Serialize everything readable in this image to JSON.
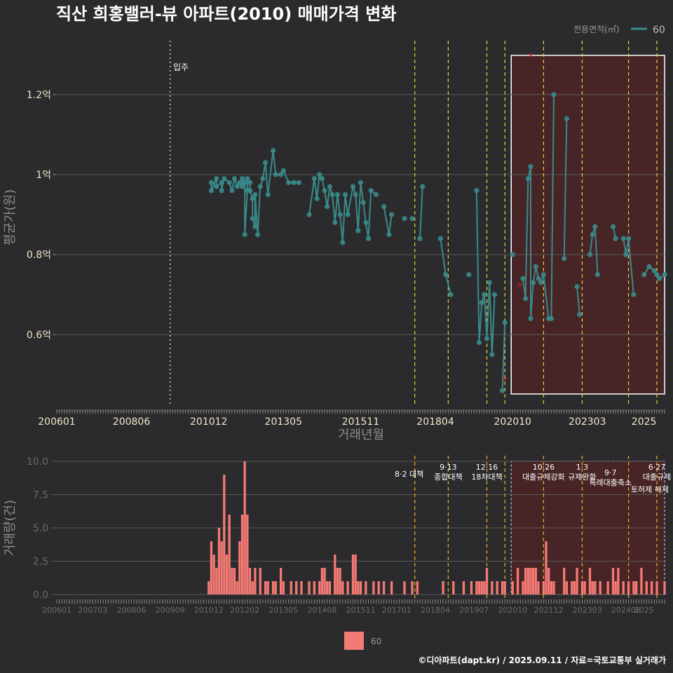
{
  "title": "직산 희홍밸러-뷰 아파트(2010) 매매가격 변화",
  "caption": "©디아파트(dapt.kr) / 2025.09.11 / 자료=국토교통부 실거래가",
  "colors": {
    "background": "#2b2b2d",
    "series": "#3a8a8a",
    "bar": "#f47a74",
    "policy_line": "#e8d33c",
    "highlight_fill": "#4a2326",
    "highlight_border": "#ffffff",
    "marker": "#e0202a"
  },
  "chart_data": [
    {
      "type": "line",
      "title": "직산 희홍밸러-뷰 아파트(2010) 매매가격 변화",
      "xlabel": "거래년월",
      "ylabel": "평균가(원)",
      "x_tick_labels": [
        "200601",
        "200806",
        "201012",
        "201305",
        "201511",
        "201804",
        "202010",
        "202303",
        "2025"
      ],
      "y_ticks": [
        0.6,
        0.8,
        1.0,
        1.2
      ],
      "y_tick_labels": [
        "0.6억",
        "0.8억",
        "1억",
        "1.2억"
      ],
      "ylim": [
        0.42,
        1.34
      ],
      "xlim": [
        "2006-01",
        "2025-09"
      ],
      "legend": {
        "title": "전용면적(㎡)",
        "entries": [
          "60"
        ],
        "position": "top-right"
      },
      "annotation_move_in": {
        "label": "입주",
        "date": "2009-09"
      },
      "highlight_range": [
        "2020-10",
        "2025-09"
      ],
      "policy_dates": [
        "2017-08",
        "2018-09",
        "2019-12",
        "2020-07",
        "2021-10",
        "2023-01",
        "2024-07",
        "2025-06"
      ],
      "outlier_markers": [
        {
          "date": "2020-07",
          "value": 0.49
        },
        {
          "date": "2021-01",
          "value": 0.725
        },
        {
          "date": "2021-05",
          "value": 1.3
        }
      ],
      "series": [
        {
          "name": "60",
          "points": [
            [
              "2011-01",
              0.98
            ],
            [
              "2011-01",
              0.96
            ],
            [
              "2011-03",
              0.99
            ],
            [
              "2011-03",
              0.97
            ],
            [
              "2011-05",
              0.98
            ],
            [
              "2011-05",
              0.96
            ],
            [
              "2011-06",
              0.99
            ],
            [
              "2011-08",
              0.98
            ],
            [
              "2011-09",
              0.96
            ],
            [
              "2011-10",
              0.99
            ],
            [
              "2011-11",
              0.97
            ],
            [
              "2011-12",
              0.98
            ],
            [
              "2012-01",
              0.97
            ],
            [
              "2012-01",
              0.99
            ],
            [
              "2012-02",
              0.98
            ],
            [
              "2012-02",
              0.85
            ],
            [
              "2012-03",
              0.96
            ],
            [
              "2012-03",
              0.99
            ],
            [
              "2012-04",
              0.98
            ],
            [
              "2012-04",
              0.96
            ],
            [
              "2012-05",
              0.94
            ],
            [
              "2012-05",
              0.89
            ],
            [
              "2012-06",
              0.87
            ],
            [
              "2012-06",
              0.95
            ],
            [
              "2012-07",
              0.85
            ],
            [
              "2012-08",
              0.97
            ],
            [
              "2012-09",
              0.99
            ],
            [
              "2012-10",
              1.03
            ],
            [
              "2012-11",
              0.95
            ],
            [
              "2013-01",
              1.06
            ],
            [
              "2013-02",
              1.0
            ],
            [
              "2013-04",
              1.0
            ],
            [
              "2013-05",
              1.01
            ],
            [
              "2013-07",
              0.98
            ],
            [
              "2013-09",
              0.98
            ],
            [
              "2013-11",
              0.98
            ],
            [
              "2014-03",
              0.9
            ],
            [
              "2014-05",
              0.99
            ],
            [
              "2014-06",
              0.94
            ],
            [
              "2014-07",
              1.0
            ],
            [
              "2014-08",
              0.99
            ],
            [
              "2014-09",
              0.96
            ],
            [
              "2014-10",
              0.92
            ],
            [
              "2014-11",
              0.97
            ],
            [
              "2014-12",
              0.95
            ],
            [
              "2015-01",
              0.88
            ],
            [
              "2015-02",
              0.95
            ],
            [
              "2015-03",
              0.9
            ],
            [
              "2015-04",
              0.83
            ],
            [
              "2015-05",
              0.95
            ],
            [
              "2015-06",
              0.9
            ],
            [
              "2015-08",
              0.97
            ],
            [
              "2015-09",
              0.95
            ],
            [
              "2015-10",
              0.86
            ],
            [
              "2015-11",
              0.98
            ],
            [
              "2015-12",
              0.93
            ],
            [
              "2016-01",
              0.88
            ],
            [
              "2016-02",
              0.84
            ],
            [
              "2016-03",
              0.96
            ],
            [
              "2016-05",
              0.95
            ],
            [
              "2016-08",
              0.92
            ],
            [
              "2016-10",
              0.85
            ],
            [
              "2016-11",
              0.9
            ],
            [
              "2017-04",
              0.89
            ],
            [
              "2017-07",
              0.89
            ],
            [
              "2017-10",
              0.84
            ],
            [
              "2017-11",
              0.97
            ],
            [
              "2018-06",
              0.84
            ],
            [
              "2018-08",
              0.75
            ],
            [
              "2018-10",
              0.7
            ],
            [
              "2019-05",
              0.75
            ],
            [
              "2019-08",
              0.96
            ],
            [
              "2019-09",
              0.58
            ],
            [
              "2019-10",
              0.68
            ],
            [
              "2019-11",
              0.7
            ],
            [
              "2019-12",
              0.59
            ],
            [
              "2020-01",
              0.73
            ],
            [
              "2020-02",
              0.55
            ],
            [
              "2020-03",
              0.7
            ],
            [
              "2020-06",
              0.46
            ],
            [
              "2020-07",
              0.63
            ],
            [
              "2020-10",
              0.8
            ],
            [
              "2021-02",
              0.74
            ],
            [
              "2021-03",
              0.69
            ],
            [
              "2021-04",
              0.99
            ],
            [
              "2021-05",
              1.02
            ],
            [
              "2021-05",
              0.64
            ],
            [
              "2021-06",
              0.73
            ],
            [
              "2021-07",
              0.77
            ],
            [
              "2021-08",
              0.74
            ],
            [
              "2021-09",
              0.73
            ],
            [
              "2021-10",
              0.75
            ],
            [
              "2021-12",
              0.64
            ],
            [
              "2022-01",
              0.64
            ],
            [
              "2022-02",
              1.2
            ],
            [
              "2022-06",
              0.79
            ],
            [
              "2022-07",
              1.14
            ],
            [
              "2022-11",
              0.72
            ],
            [
              "2022-12",
              0.65
            ],
            [
              "2023-04",
              0.8
            ],
            [
              "2023-05",
              0.85
            ],
            [
              "2023-06",
              0.87
            ],
            [
              "2023-07",
              0.75
            ],
            [
              "2024-01",
              0.87
            ],
            [
              "2024-02",
              0.84
            ],
            [
              "2024-05",
              0.84
            ],
            [
              "2024-06",
              0.8
            ],
            [
              "2024-07",
              0.84
            ],
            [
              "2024-09",
              0.7
            ],
            [
              "2025-01",
              0.75
            ],
            [
              "2025-03",
              0.77
            ],
            [
              "2025-05",
              0.76
            ],
            [
              "2025-06",
              0.75
            ],
            [
              "2025-07",
              0.74
            ],
            [
              "2025-09",
              0.75
            ]
          ]
        }
      ]
    },
    {
      "type": "bar",
      "xlabel": "",
      "ylabel": "거래량(건)",
      "ylim": [
        0,
        10
      ],
      "y_ticks": [
        0,
        2.5,
        5,
        7.5,
        10
      ],
      "y_tick_labels": [
        "0.0",
        "2.5",
        "5.0",
        "7.5",
        "10.0"
      ],
      "x_tick_labels": [
        "200601",
        "200703",
        "200806",
        "200909",
        "201012",
        "201202",
        "201305",
        "201408",
        "201511",
        "201701",
        "201804",
        "201907",
        "202010",
        "202112",
        "202303",
        "202406",
        "2025"
      ],
      "legend": {
        "entries": [
          "60"
        ],
        "position": "bottom"
      },
      "policy_annotations": [
        {
          "date": "2017-08",
          "label": "8·2 대책"
        },
        {
          "date": "2018-09",
          "label": "9·13\n종합대책"
        },
        {
          "date": "2019-12",
          "label": "12·16\n18차대책"
        },
        {
          "date": "2021-10",
          "label": "10·26\n대출규제강화"
        },
        {
          "date": "2023-01",
          "label": "1·3\n규제완화"
        },
        {
          "date": "2023-06",
          "label": "9·7\n특례대출축소"
        },
        {
          "date": "2025-06",
          "label": "6·27\n대출규제"
        },
        {
          "date": "2025-06",
          "label": "토허제 해제"
        }
      ],
      "series": [
        {
          "name": "60",
          "values": [
            [
              "2010-12",
              1
            ],
            [
              "2011-01",
              4
            ],
            [
              "2011-02",
              3
            ],
            [
              "2011-03",
              2
            ],
            [
              "2011-04",
              5
            ],
            [
              "2011-05",
              4
            ],
            [
              "2011-06",
              9
            ],
            [
              "2011-07",
              3
            ],
            [
              "2011-08",
              6
            ],
            [
              "2011-09",
              2
            ],
            [
              "2011-10",
              2
            ],
            [
              "2011-11",
              1
            ],
            [
              "2011-12",
              4
            ],
            [
              "2012-01",
              6
            ],
            [
              "2012-02",
              10
            ],
            [
              "2012-03",
              6
            ],
            [
              "2012-04",
              2
            ],
            [
              "2012-05",
              1
            ],
            [
              "2012-06",
              2
            ],
            [
              "2012-08",
              2
            ],
            [
              "2012-10",
              1
            ],
            [
              "2012-11",
              1
            ],
            [
              "2013-01",
              1
            ],
            [
              "2013-02",
              1
            ],
            [
              "2013-04",
              2
            ],
            [
              "2013-05",
              1
            ],
            [
              "2013-08",
              1
            ],
            [
              "2013-10",
              1
            ],
            [
              "2013-12",
              1
            ],
            [
              "2014-03",
              1
            ],
            [
              "2014-05",
              1
            ],
            [
              "2014-07",
              1
            ],
            [
              "2014-08",
              2
            ],
            [
              "2014-09",
              2
            ],
            [
              "2014-10",
              1
            ],
            [
              "2014-11",
              1
            ],
            [
              "2015-01",
              3
            ],
            [
              "2015-02",
              2
            ],
            [
              "2015-03",
              2
            ],
            [
              "2015-04",
              1
            ],
            [
              "2015-06",
              1
            ],
            [
              "2015-08",
              3
            ],
            [
              "2015-09",
              3
            ],
            [
              "2015-10",
              1
            ],
            [
              "2015-11",
              1
            ],
            [
              "2016-01",
              1
            ],
            [
              "2016-04",
              1
            ],
            [
              "2016-06",
              1
            ],
            [
              "2016-08",
              1
            ],
            [
              "2016-11",
              1
            ],
            [
              "2017-04",
              1
            ],
            [
              "2017-07",
              1
            ],
            [
              "2017-09",
              1
            ],
            [
              "2018-07",
              1
            ],
            [
              "2018-11",
              1
            ],
            [
              "2019-03",
              1
            ],
            [
              "2019-06",
              1
            ],
            [
              "2019-08",
              1
            ],
            [
              "2019-09",
              1
            ],
            [
              "2019-10",
              1
            ],
            [
              "2019-11",
              1
            ],
            [
              "2019-12",
              2
            ],
            [
              "2020-02",
              1
            ],
            [
              "2020-04",
              1
            ],
            [
              "2020-06",
              1
            ],
            [
              "2020-07",
              1
            ],
            [
              "2020-10",
              1
            ],
            [
              "2020-12",
              2
            ],
            [
              "2021-02",
              1
            ],
            [
              "2021-03",
              2
            ],
            [
              "2021-04",
              2
            ],
            [
              "2021-05",
              2
            ],
            [
              "2021-06",
              2
            ],
            [
              "2021-07",
              2
            ],
            [
              "2021-08",
              1
            ],
            [
              "2021-10",
              1
            ],
            [
              "2021-11",
              4
            ],
            [
              "2021-12",
              2
            ],
            [
              "2022-01",
              1
            ],
            [
              "2022-02",
              1
            ],
            [
              "2022-06",
              2
            ],
            [
              "2022-07",
              1
            ],
            [
              "2022-09",
              1
            ],
            [
              "2022-10",
              1
            ],
            [
              "2022-11",
              2
            ],
            [
              "2023-01",
              1
            ],
            [
              "2023-02",
              1
            ],
            [
              "2023-04",
              2
            ],
            [
              "2023-05",
              1
            ],
            [
              "2023-06",
              1
            ],
            [
              "2023-08",
              1
            ],
            [
              "2023-11",
              1
            ],
            [
              "2024-01",
              2
            ],
            [
              "2024-02",
              1
            ],
            [
              "2024-03",
              2
            ],
            [
              "2024-05",
              1
            ],
            [
              "2024-07",
              1
            ],
            [
              "2024-09",
              1
            ],
            [
              "2024-10",
              1
            ],
            [
              "2024-12",
              2
            ],
            [
              "2025-02",
              1
            ],
            [
              "2025-04",
              1
            ],
            [
              "2025-06",
              1
            ],
            [
              "2025-09",
              1
            ]
          ]
        }
      ]
    }
  ]
}
